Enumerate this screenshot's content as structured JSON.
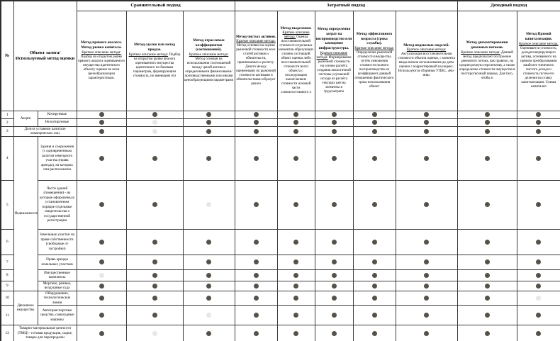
{
  "table": {
    "corner": {
      "num": "№",
      "object": "Объект залога/Используемый метод оценки"
    },
    "approaches": [
      {
        "label": "Сравнительный подход"
      },
      {
        "label": "Затратный подход"
      },
      {
        "label": "Доходный подход"
      }
    ],
    "methods": [
      {
        "title": "Метод прямого аналога. Метод рынка капитала.",
        "subtitle": "Краткое описание метода:",
        "desc": "Подбор на открытом рынке прямого аналога оцениваемого имущества идентичного объекту оценки по всем ценообразующим характеристикам."
      },
      {
        "title": "Метод сделок или метод продаж.",
        "subtitle": "Краткое описание метода:",
        "desc": "Подбор на открытом рынке аналога оцениваемого имущества идентичного по базовым параметрам, формирующим стоимость, но имеющим отл"
      },
      {
        "title": "Метод отраслевых коэффициентов (соотношений).",
        "subtitle": "Краткое описание метода:",
        "desc": "Метод основан на использовании соотношений между ценой актива и определенными финансовыми/производственными или иными ценообразующими параметрами"
      },
      {
        "title": "Метод чистых активов.",
        "subtitle": "Краткое описание метода:",
        "desc": "Метод основан на оценке рыночной стоимости всех статей активов и обязательств, принимаемых к расчету. Дельта между оцененными по рыночной стоимости активами и обязательствами образует рыноч"
      },
      {
        "title": "Метод выделения.",
        "subtitle": "Краткое описание метода:",
        "desc": "Оценка восстановительной стоимости отдельных элементов образующих сложно состоящий объект оценки либо восстановительной стоимости всего объекта с последующим вычислением стоимости искомой части сложносоставного о"
      },
      {
        "title": "Метод определения затрат на воспроизводство или замещение инфраструктуры.",
        "subtitle": "Краткое описание метода:",
        "desc": "Формирование рыночной стоимости на основе расчёта создания аналогичной системы улучшений исходя из расчёта текущих цен на элементы и трудозатраты"
      },
      {
        "title": "Метод эффективного возраста (срока службы).",
        "subtitle": "Краткое описание метода:",
        "desc": "Определение рыночной стоимости имущества путём умножения стоимости полного воспроизводства на коэффициент, равный отношению фактического срока использования объект"
      },
      {
        "title": "Метод индексных моделей.",
        "subtitle": "Краткое описание метода:",
        "desc": "Актуализация восстановительная стоимости объекта оценки, с момента ввода начала использования до даты оценки с корректировкой на индекс. Используются сборники УПВС, «Ко-инв»"
      },
      {
        "title": "Метод дисконтирования денежных потоков.",
        "subtitle": "Краткое описание метода:",
        "desc": "Данный метод предполагает построение денежного потока, как правило, на среднесрочную перспективу, а также определение стоимости имущества в постпрогнозный период. Для того, чтобы п"
      },
      {
        "title": "Метод Прямой капитализации.",
        "subtitle": "Краткое описание метода:",
        "desc": "Оценивается стоимость, доходогенерирующего актива, основанного на прямом преобразовании наиболее типичного чистого дохода и стоимость путем его деления на ставку капитализации. Ставка капитализ"
      }
    ],
    "rows": [
      {
        "num": "1",
        "group": "Акции",
        "label": "Котируемые",
        "dots": [
          1,
          1,
          1,
          1,
          1,
          1,
          1,
          1,
          1,
          1
        ]
      },
      {
        "num": "2",
        "label": "Не котируемые",
        "dots": [
          1,
          0.2,
          1,
          1,
          1,
          1,
          1,
          1,
          1,
          1
        ]
      },
      {
        "num": "3",
        "label": "Доли в уставном капитале коммерческих лиц",
        "dots": [
          1,
          0.2,
          1,
          1,
          1,
          1,
          1,
          1,
          1,
          1
        ]
      },
      {
        "num": "4",
        "group": "Недвижимость",
        "label": "Здания и сооружения (с одновременным залогом земельного участка (права аренды), на которых они расположены",
        "dots": [
          1,
          1,
          1,
          1,
          1,
          1,
          1,
          1,
          1,
          1
        ]
      },
      {
        "num": "5",
        "label": "Части зданий (помещения) - на которые оформлены в установленном порядке отдельные свидетельства о государственной регистрации",
        "dots": [
          1,
          1,
          0.2,
          1,
          1,
          1,
          1,
          1,
          1,
          1
        ]
      },
      {
        "num": "6",
        "label": "Земельные участки на праве собственности (свободные от застройки)",
        "dots": [
          1,
          1,
          1,
          1,
          1,
          1,
          1,
          1,
          1,
          1
        ]
      },
      {
        "num": "7",
        "label": "Права аренды земельных участков",
        "dots": [
          1,
          1,
          1,
          1,
          1,
          1,
          1,
          1,
          1,
          1
        ]
      },
      {
        "num": "8",
        "label": "Имущественные комплексы",
        "dots": [
          0.2,
          1,
          1,
          1,
          1,
          1,
          1,
          1,
          1,
          1
        ]
      },
      {
        "num": "9",
        "label": "Морские, речные, воздушные суда",
        "dots": [
          1,
          1,
          1,
          1,
          1,
          1,
          1,
          1,
          1,
          1
        ]
      },
      {
        "num": "10",
        "group": "Движимое имущество",
        "label": "Оборудование, технологические линии",
        "dots": [
          1,
          1,
          1,
          1,
          1,
          1,
          1,
          1,
          1,
          0.2
        ]
      },
      {
        "num": "11",
        "label": "Автотранспортные средства, самоходные машины",
        "dots": [
          1,
          1,
          0.2,
          1,
          1,
          1,
          1,
          1,
          1,
          1
        ]
      },
      {
        "num": "12",
        "label": "Товарно-материальные ценности (ТМЦ)  -  готовая продукция, сырье, товары для перепродажи",
        "dots": [
          1,
          0.2,
          1,
          1,
          1,
          1,
          1,
          1,
          1,
          1
        ]
      }
    ]
  },
  "colors": {
    "dot": "#57514b",
    "dot_faint": "#e8e7e4"
  }
}
